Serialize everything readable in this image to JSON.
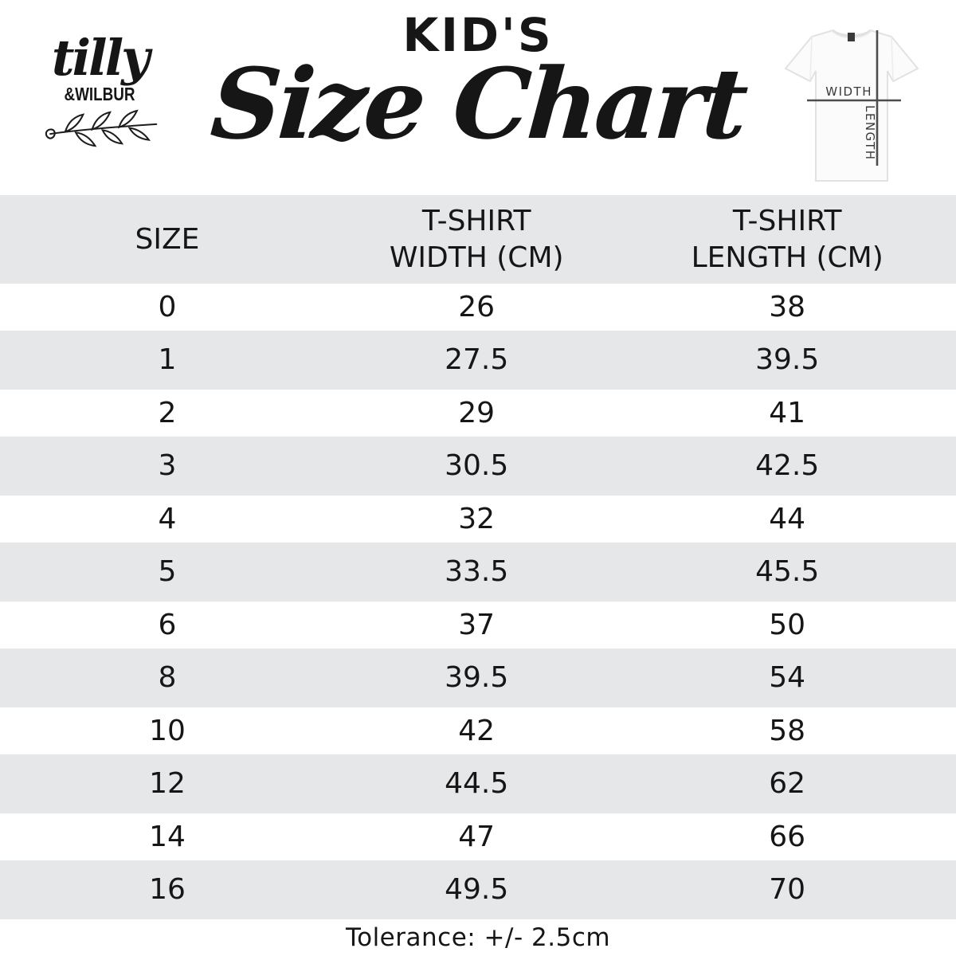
{
  "colors": {
    "band": "#e6e7e8",
    "text": "#161616",
    "diagram_line": "#4d4d4d"
  },
  "brand": {
    "script": "tilly",
    "sub": "&WILBUR"
  },
  "title": {
    "kicker": "KID'S",
    "main": "Size Chart"
  },
  "shirt_diagram": {
    "width_label": "WIDTH",
    "length_label": "LENGTH"
  },
  "table": {
    "columns": [
      {
        "line1": "SIZE",
        "line2": ""
      },
      {
        "line1": "T-SHIRT",
        "line2": "WIDTH (CM)"
      },
      {
        "line1": "T-SHIRT",
        "line2": "LENGTH (CM)"
      }
    ],
    "rows": [
      [
        "0",
        "26",
        "38"
      ],
      [
        "1",
        "27.5",
        "39.5"
      ],
      [
        "2",
        "29",
        "41"
      ],
      [
        "3",
        "30.5",
        "42.5"
      ],
      [
        "4",
        "32",
        "44"
      ],
      [
        "5",
        "33.5",
        "45.5"
      ],
      [
        "6",
        "37",
        "50"
      ],
      [
        "8",
        "39.5",
        "54"
      ],
      [
        "10",
        "42",
        "58"
      ],
      [
        "12",
        "44.5",
        "62"
      ],
      [
        "14",
        "47",
        "66"
      ],
      [
        "16",
        "49.5",
        "70"
      ]
    ]
  },
  "footer": {
    "tolerance": "Tolerance: +/- 2.5cm"
  },
  "chart_data": {
    "type": "table",
    "title": "KID'S Size Chart",
    "columns": [
      "SIZE",
      "T-SHIRT WIDTH (CM)",
      "T-SHIRT LENGTH (CM)"
    ],
    "rows": [
      [
        0,
        26,
        38
      ],
      [
        1,
        27.5,
        39.5
      ],
      [
        2,
        29,
        41
      ],
      [
        3,
        30.5,
        42.5
      ],
      [
        4,
        32,
        44
      ],
      [
        5,
        33.5,
        45.5
      ],
      [
        6,
        37,
        50
      ],
      [
        8,
        39.5,
        54
      ],
      [
        10,
        42,
        58
      ],
      [
        12,
        44.5,
        62
      ],
      [
        14,
        47,
        66
      ],
      [
        16,
        49.5,
        70
      ]
    ],
    "footnote": "Tolerance: +/- 2.5cm"
  }
}
